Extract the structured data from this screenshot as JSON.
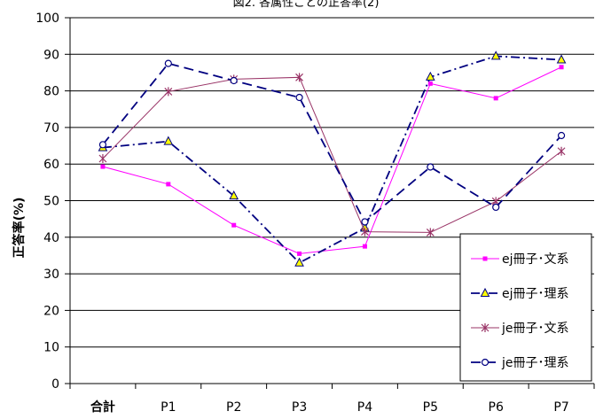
{
  "chart_data": {
    "type": "line",
    "title": "図2. 各属性ごとの正答率(2)",
    "xlabel": "",
    "ylabel": "正答率(%)",
    "ylim": [
      0,
      100
    ],
    "yticks": [
      0,
      10,
      20,
      30,
      40,
      50,
      60,
      70,
      80,
      90,
      100
    ],
    "categories": [
      "合計",
      "P1",
      "P2",
      "P3",
      "P4",
      "P5",
      "P6",
      "P7"
    ],
    "grid": true,
    "legend_position": "bottom-right",
    "series": [
      {
        "name": "ej冊子･文系",
        "color": "#ff00ff",
        "dash": "solid",
        "marker": "square",
        "values": [
          59.3,
          54.5,
          43.3,
          35.5,
          37.5,
          82.0,
          78.0,
          86.5
        ]
      },
      {
        "name": "ej冊子･理系",
        "color": "#000080",
        "dash": "dashdot",
        "marker": "triangle",
        "values": [
          64.5,
          66.2,
          51.3,
          33.0,
          42.5,
          83.8,
          89.5,
          88.5
        ]
      },
      {
        "name": "je冊子･文系",
        "color": "#993366",
        "dash": "solid",
        "marker": "asterisk",
        "values": [
          61.5,
          79.8,
          83.2,
          83.7,
          41.5,
          41.3,
          49.8,
          63.5
        ]
      },
      {
        "name": "je冊子･理系",
        "color": "#000080",
        "dash": "longdash",
        "marker": "circle",
        "values": [
          65.3,
          87.5,
          82.8,
          78.2,
          44.2,
          59.2,
          48.2,
          67.8
        ]
      }
    ]
  }
}
